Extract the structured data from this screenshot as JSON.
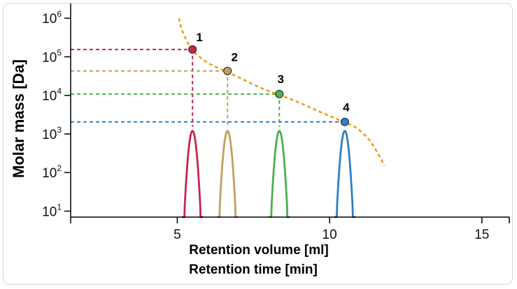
{
  "chart_data": {
    "type": "line",
    "xlabel": "Retention volume [ml]",
    "xlabel2": "Retention time [min]",
    "ylabel": "Molar mass [Da]",
    "y_scale": "log",
    "xlim": [
      1.5,
      15.9
    ],
    "ylim": [
      7,
      1800000
    ],
    "x_ticks": [
      {
        "value": 5,
        "label": "5"
      },
      {
        "value": 10,
        "label": "10"
      },
      {
        "value": 15,
        "label": "15"
      }
    ],
    "y_ticks": [
      {
        "value": 10,
        "base": "10",
        "exp": "1"
      },
      {
        "value": 100,
        "base": "10",
        "exp": "2"
      },
      {
        "value": 1000,
        "base": "10",
        "exp": "3"
      },
      {
        "value": 10000,
        "base": "10",
        "exp": "4"
      },
      {
        "value": 100000,
        "base": "10",
        "exp": "5"
      },
      {
        "value": 1000000,
        "base": "10",
        "exp": "6"
      }
    ],
    "calibration_curve": {
      "color": "#E8A020",
      "x": [
        5.05,
        5.2,
        5.5,
        6.0,
        6.6,
        7.2,
        7.8,
        8.4,
        9.0,
        9.6,
        10.2,
        10.5,
        10.9,
        11.3,
        11.6,
        11.8
      ],
      "y": [
        1000000,
        400000,
        150000,
        70000,
        42000,
        25000,
        15000,
        10000,
        6500,
        4000,
        2500,
        2000,
        1400,
        700,
        300,
        150
      ]
    },
    "points": [
      {
        "label": "1",
        "x": 5.5,
        "y": 155000,
        "color": "#C8264B"
      },
      {
        "label": "2",
        "x": 6.65,
        "y": 43000,
        "color": "#BFA05E"
      },
      {
        "label": "3",
        "x": 8.35,
        "y": 10800,
        "color": "#4CAF50"
      },
      {
        "label": "4",
        "x": 10.5,
        "y": 2050,
        "color": "#2F7FC1"
      }
    ],
    "peaks": [
      {
        "center": 5.5,
        "sigma": 0.085,
        "color": "#C8264B"
      },
      {
        "center": 6.65,
        "sigma": 0.085,
        "color": "#BFA05E"
      },
      {
        "center": 8.35,
        "sigma": 0.085,
        "color": "#4CAF50"
      },
      {
        "center": 10.5,
        "sigma": 0.085,
        "color": "#2F7FC1"
      }
    ],
    "peak_height": 1200,
    "grid": false,
    "legend": "none"
  }
}
